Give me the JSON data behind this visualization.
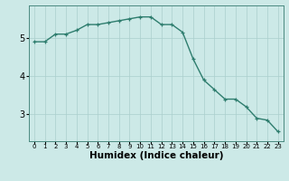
{
  "x": [
    0,
    1,
    2,
    3,
    4,
    5,
    6,
    7,
    8,
    9,
    10,
    11,
    12,
    13,
    14,
    15,
    16,
    17,
    18,
    19,
    20,
    21,
    22,
    23
  ],
  "y": [
    4.9,
    4.9,
    5.1,
    5.1,
    5.2,
    5.35,
    5.35,
    5.4,
    5.45,
    5.5,
    5.55,
    5.55,
    5.35,
    5.35,
    5.15,
    4.45,
    3.9,
    3.65,
    3.4,
    3.4,
    3.2,
    2.9,
    2.85,
    2.55
  ],
  "line_color": "#2e7d6e",
  "marker": "+",
  "bg_color": "#cce9e7",
  "grid_color": "#aacfcc",
  "xlabel": "Humidex (Indice chaleur)",
  "yticks": [
    3,
    4,
    5
  ],
  "xticks": [
    0,
    1,
    2,
    3,
    4,
    5,
    6,
    7,
    8,
    9,
    10,
    11,
    12,
    13,
    14,
    15,
    16,
    17,
    18,
    19,
    20,
    21,
    22,
    23
  ],
  "xlim": [
    -0.5,
    23.5
  ],
  "ylim": [
    2.3,
    5.85
  ],
  "figsize": [
    3.2,
    2.0
  ],
  "dpi": 100,
  "xlabel_fontsize": 7.5,
  "ytick_fontsize": 7,
  "xtick_fontsize": 5.0,
  "linewidth": 1.0,
  "markersize": 3.5,
  "spine_color": "#4a8a80"
}
